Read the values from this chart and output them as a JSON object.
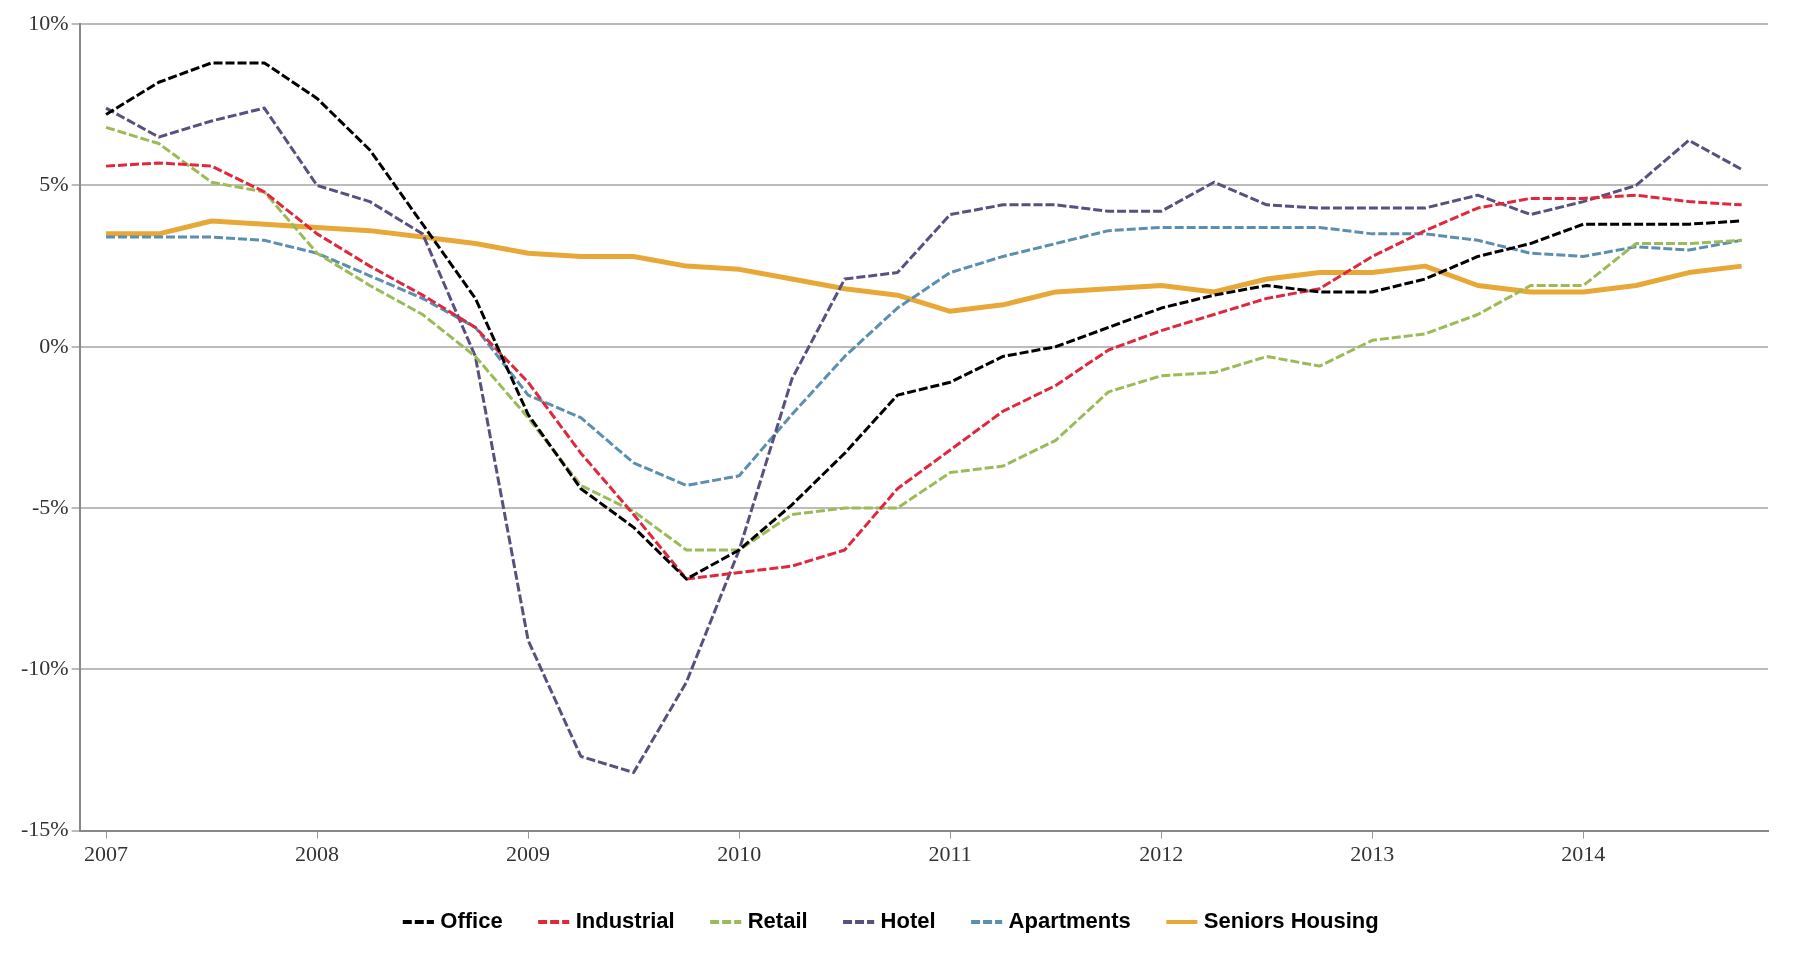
{
  "chart_data": {
    "type": "line",
    "x": [
      2007,
      2007.25,
      2007.5,
      2007.75,
      2008,
      2008.25,
      2008.5,
      2008.75,
      2009,
      2009.25,
      2009.5,
      2009.75,
      2010,
      2010.25,
      2010.5,
      2010.75,
      2011,
      2011.25,
      2011.5,
      2011.75,
      2012,
      2012.25,
      2012.5,
      2012.75,
      2013,
      2013.25,
      2013.5,
      2013.75,
      2014,
      2014.25,
      2014.5,
      2014.75
    ],
    "series": [
      {
        "name": "Office",
        "color": "#000000",
        "line_style": "dashed",
        "values": [
          7.2,
          8.2,
          8.8,
          8.8,
          7.7,
          6.1,
          3.8,
          1.5,
          -2.1,
          -4.4,
          -5.6,
          -7.2,
          -6.3,
          -4.9,
          -3.3,
          -1.5,
          -1.1,
          -0.3,
          0.0,
          0.6,
          1.2,
          1.6,
          1.9,
          1.7,
          1.7,
          2.1,
          2.8,
          3.2,
          3.8,
          3.8,
          3.8,
          3.9
        ]
      },
      {
        "name": "Industrial",
        "color": "#e0283c",
        "line_style": "dashed",
        "values": [
          5.6,
          5.7,
          5.6,
          4.8,
          3.5,
          2.5,
          1.6,
          0.6,
          -1.1,
          -3.3,
          -5.2,
          -7.2,
          -7.0,
          -6.8,
          -6.3,
          -4.4,
          -3.2,
          -2.0,
          -1.2,
          -0.1,
          0.5,
          1.0,
          1.5,
          1.8,
          2.8,
          3.6,
          4.3,
          4.6,
          4.6,
          4.7,
          4.5,
          4.4
        ]
      },
      {
        "name": "Retail",
        "color": "#9bbb59",
        "line_style": "dashed",
        "values": [
          6.8,
          6.3,
          5.1,
          4.8,
          2.9,
          1.9,
          1.0,
          -0.3,
          -2.2,
          -4.3,
          -5.1,
          -6.3,
          -6.3,
          -5.2,
          -5.0,
          -5.0,
          -3.9,
          -3.7,
          -2.9,
          -1.4,
          -0.9,
          -0.8,
          -0.3,
          -0.6,
          0.2,
          0.4,
          1.0,
          1.9,
          1.9,
          3.2,
          3.2,
          3.3
        ]
      },
      {
        "name": "Hotel",
        "color": "#5a5080",
        "line_style": "dashed",
        "values": [
          7.4,
          6.5,
          7.0,
          7.4,
          5.0,
          4.5,
          3.5,
          -0.3,
          -9.1,
          -12.7,
          -13.2,
          -10.4,
          -6.3,
          -1.0,
          2.1,
          2.3,
          4.1,
          4.4,
          4.4,
          4.2,
          4.2,
          5.1,
          4.4,
          4.3,
          4.3,
          4.3,
          4.7,
          4.1,
          4.5,
          5.0,
          6.4,
          5.5
        ]
      },
      {
        "name": "Apartments",
        "color": "#5b8fb0",
        "line_style": "dashed",
        "values": [
          3.4,
          3.4,
          3.4,
          3.3,
          2.9,
          2.2,
          1.5,
          0.6,
          -1.5,
          -2.2,
          -3.6,
          -4.3,
          -4.0,
          -2.1,
          -0.3,
          1.2,
          2.3,
          2.8,
          3.2,
          3.6,
          3.7,
          3.7,
          3.7,
          3.7,
          3.5,
          3.5,
          3.3,
          2.9,
          2.8,
          3.1,
          3.0,
          3.3
        ]
      },
      {
        "name": "Seniors Housing",
        "color": "#e8a838",
        "line_style": "solid",
        "values": [
          3.5,
          3.5,
          3.9,
          3.8,
          3.7,
          3.6,
          3.4,
          3.2,
          2.9,
          2.8,
          2.8,
          2.5,
          2.4,
          2.1,
          1.8,
          1.6,
          1.1,
          1.3,
          1.7,
          1.8,
          1.9,
          1.7,
          2.1,
          2.3,
          2.3,
          2.5,
          1.9,
          1.7,
          1.7,
          1.9,
          2.3,
          2.5
        ]
      }
    ],
    "xlim": [
      2006.875,
      2014.875
    ],
    "xticks": [
      2007,
      2008,
      2009,
      2010,
      2011,
      2012,
      2013,
      2014
    ],
    "ylim": [
      -15,
      10
    ],
    "yticks": [
      {
        "value": -15,
        "label": "-15%"
      },
      {
        "value": -10,
        "label": "-10%"
      },
      {
        "value": -5,
        "label": "-5%"
      },
      {
        "value": 0,
        "label": "0%"
      },
      {
        "value": 5,
        "label": "5%"
      },
      {
        "value": 10,
        "label": "10%"
      }
    ],
    "grid": "y",
    "legend": "bottom",
    "marker": "none"
  }
}
